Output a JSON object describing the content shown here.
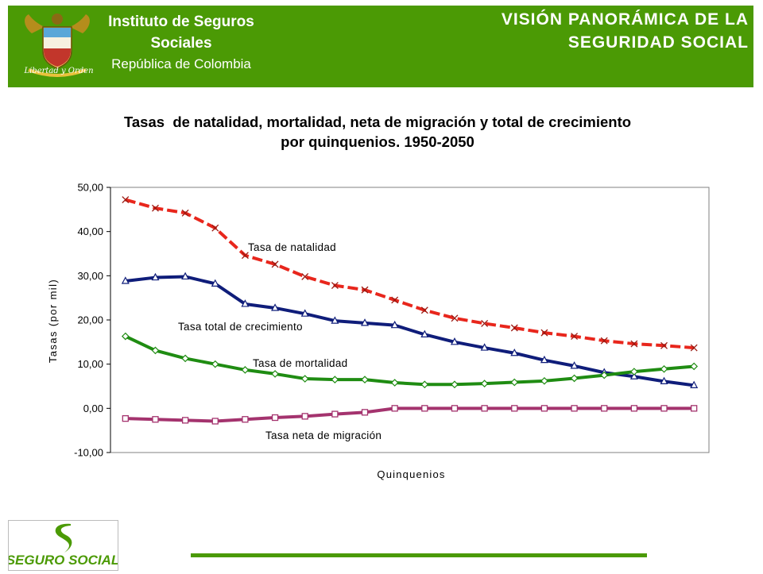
{
  "header": {
    "org_line1": "Instituto de Seguros",
    "org_line2": "Sociales",
    "org_line3": "República de Colombia",
    "motto": "Libertad y Orden",
    "title_line1": "VISIÓN PANORÁMICA DE LA",
    "title_line2": "SEGURIDAD SOCIAL"
  },
  "colors": {
    "banner": "#4b9a05",
    "natalidad": "#e8261c",
    "crecimiento": "#0f1d7a",
    "mortalidad": "#1f8c12",
    "migracion": "#a4336e"
  },
  "footer": {
    "logo_text": "SEGURO SOCIAL"
  },
  "chart_data": {
    "type": "line",
    "title_line1": "Tasas  de natalidad, mortalidad, neta de migración y total de crecimiento",
    "title_line2": "por quinquenios. 1950-2050",
    "xlabel": "Quinquenios",
    "ylabel": "Tasas (por mil)",
    "ylim": [
      -10,
      50
    ],
    "yticks": [
      "50,00",
      "40,00",
      "30,00",
      "20,00",
      "10,00",
      "0,00",
      "-10,00"
    ],
    "grid": false,
    "legend": "none",
    "series": [
      {
        "name": "Tasa de natalidad",
        "marker": "x",
        "dash": true,
        "values": [
          47.2,
          45.3,
          44.2,
          40.8,
          34.6,
          32.6,
          29.8,
          27.8,
          26.8,
          24.5,
          22.2,
          20.4,
          19.2,
          18.2,
          17.1,
          16.3,
          15.3,
          14.6,
          14.2,
          13.7
        ]
      },
      {
        "name": "Tasa total de crecimiento",
        "marker": "triangle",
        "dash": false,
        "values": [
          28.8,
          29.6,
          29.8,
          28.2,
          23.6,
          22.7,
          21.4,
          19.8,
          19.3,
          18.8,
          16.7,
          15.0,
          13.7,
          12.5,
          10.9,
          9.6,
          8.1,
          7.2,
          6.1,
          5.2
        ]
      },
      {
        "name": "Tasa de mortalidad",
        "marker": "diamond",
        "dash": false,
        "values": [
          16.3,
          13.1,
          11.3,
          10.0,
          8.7,
          7.8,
          6.7,
          6.5,
          6.5,
          5.8,
          5.4,
          5.4,
          5.6,
          5.9,
          6.2,
          6.8,
          7.5,
          8.3,
          8.9,
          9.5
        ]
      },
      {
        "name": "Tasa neta de migración",
        "marker": "square",
        "dash": false,
        "values": [
          -2.3,
          -2.5,
          -2.7,
          -2.9,
          -2.5,
          -2.1,
          -1.8,
          -1.3,
          -0.9,
          0.0,
          0.0,
          0.0,
          0.0,
          0.0,
          0.0,
          0.0,
          0.0,
          0.0,
          0.0,
          0.0
        ]
      }
    ]
  }
}
